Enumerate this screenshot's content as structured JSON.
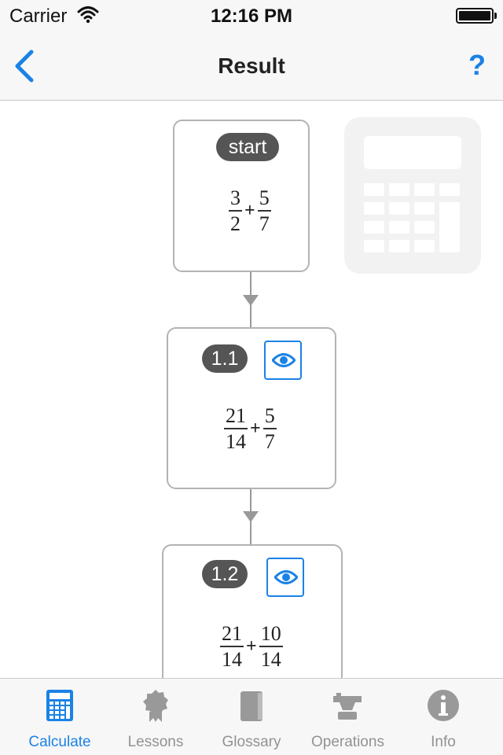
{
  "status_bar": {
    "carrier": "Carrier",
    "time": "12:16 PM"
  },
  "nav": {
    "title": "Result",
    "help_label": "?"
  },
  "steps": [
    {
      "badge": "start",
      "expr": {
        "a_num": "3",
        "a_den": "2",
        "op": "+",
        "b_num": "5",
        "b_den": "7"
      }
    },
    {
      "badge": "1.1",
      "expr": {
        "a_num": "21",
        "a_den": "14",
        "op": "+",
        "b_num": "5",
        "b_den": "7"
      }
    },
    {
      "badge": "1.2",
      "expr": {
        "a_num": "21",
        "a_den": "14",
        "op": "+",
        "b_num": "10",
        "b_den": "14"
      }
    }
  ],
  "tabs": [
    {
      "label": "Calculate",
      "icon": "calculator-icon",
      "active": true
    },
    {
      "label": "Lessons",
      "icon": "ribbon-icon",
      "active": false
    },
    {
      "label": "Glossary",
      "icon": "book-icon",
      "active": false
    },
    {
      "label": "Operations",
      "icon": "anvil-icon",
      "active": false
    },
    {
      "label": "Info",
      "icon": "info-icon",
      "active": false
    }
  ],
  "colors": {
    "accent": "#1a82e6",
    "badge": "#555555",
    "card_border": "#b3b3b3",
    "inactive_tab": "#929292"
  }
}
